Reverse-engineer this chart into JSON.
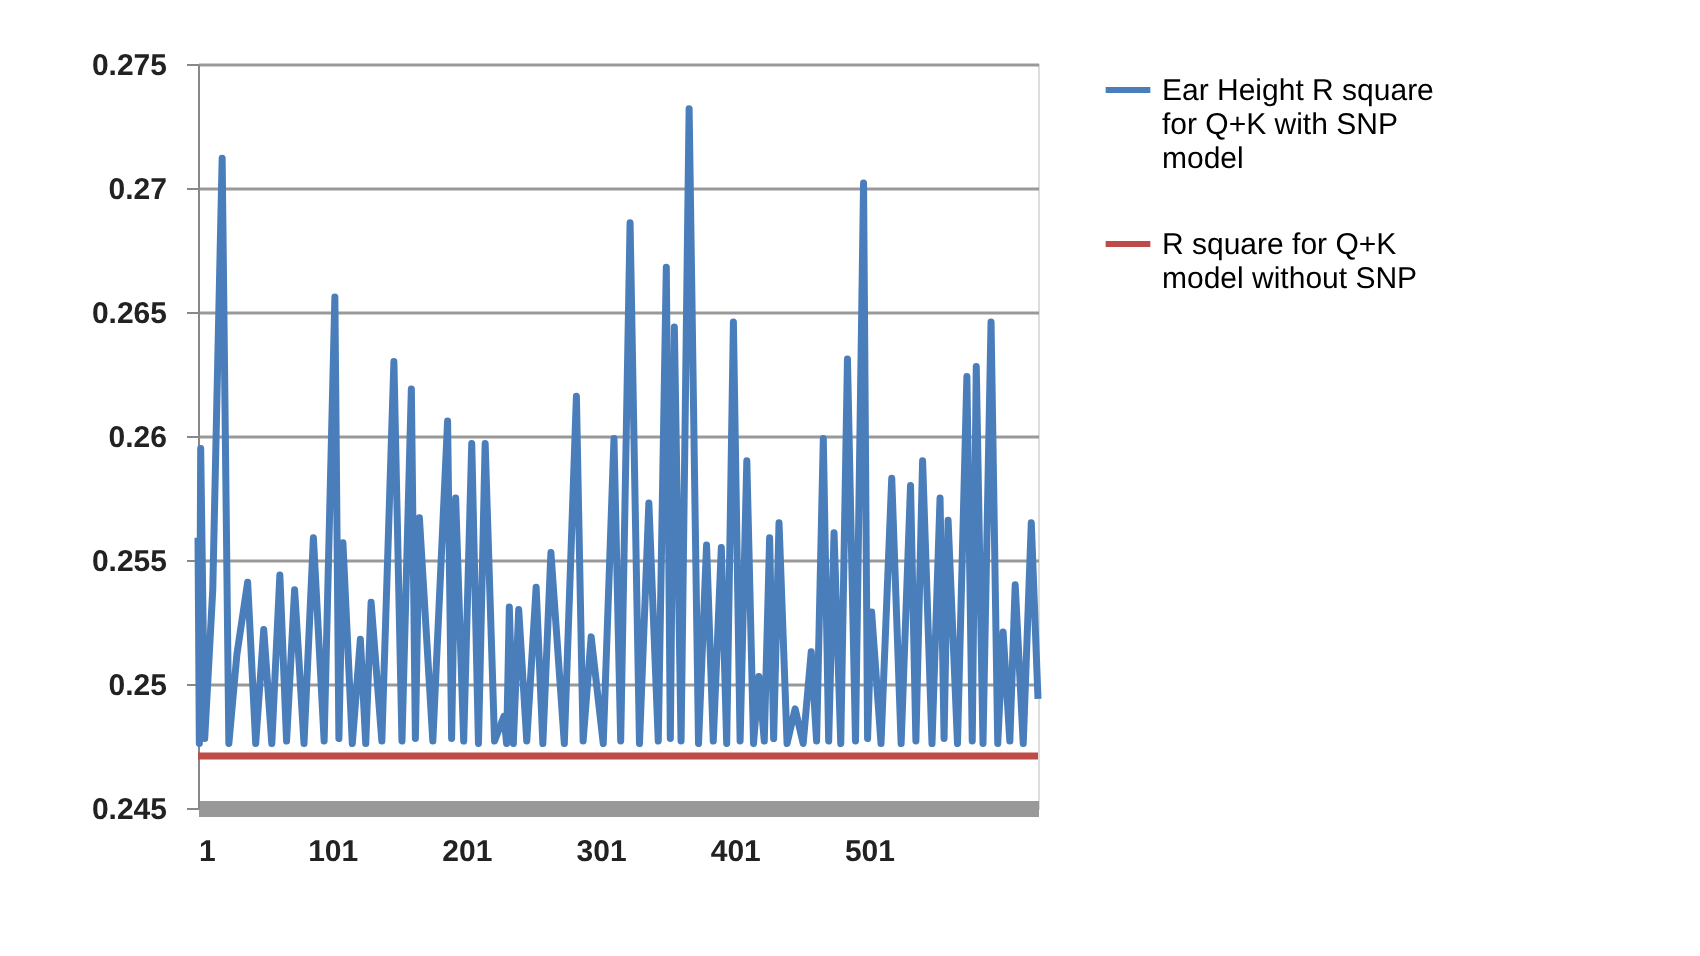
{
  "chart_data": {
    "type": "line",
    "xlim": [
      1,
      627
    ],
    "xticks": [
      1,
      101,
      201,
      301,
      401,
      501
    ],
    "ylim": [
      0.245,
      0.275
    ],
    "yticks": [
      0.245,
      0.25,
      0.255,
      0.26,
      0.265,
      0.27,
      0.275
    ],
    "grid": "y",
    "legend": "right",
    "series": [
      {
        "name": "Ear Height R square for Q+K with SNP model",
        "color": "#4a7ebb",
        "x": [
          1,
          2,
          3,
          6,
          12,
          19,
          24,
          30,
          38,
          44,
          50,
          56,
          62,
          67,
          73,
          80,
          87,
          95,
          103,
          106,
          109,
          116,
          122,
          126,
          130,
          138,
          147,
          153,
          160,
          163,
          166,
          176,
          187,
          190,
          193,
          199,
          205,
          210,
          215,
          222,
          229,
          231,
          233,
          236,
          240,
          246,
          253,
          258,
          264,
          274,
          283,
          288,
          294,
          303,
          311,
          316,
          323,
          330,
          337,
          344,
          350,
          353,
          356,
          361,
          367,
          374,
          380,
          385,
          391,
          395,
          400,
          405,
          410,
          415,
          419,
          423,
          427,
          430,
          434,
          440,
          446,
          452,
          458,
          462,
          467,
          471,
          475,
          480,
          485,
          491,
          497,
          500,
          503,
          510,
          518,
          525,
          532,
          536,
          541,
          548,
          554,
          557,
          560,
          567,
          574,
          578,
          581,
          586,
          592,
          597,
          601,
          606,
          610,
          616,
          622,
          627
        ],
        "values": [
          0.2559,
          0.2476,
          0.2595,
          0.2478,
          0.2538,
          0.2712,
          0.2476,
          0.2512,
          0.2541,
          0.2476,
          0.2522,
          0.2476,
          0.2544,
          0.2477,
          0.2538,
          0.2476,
          0.2559,
          0.2477,
          0.2656,
          0.2478,
          0.2557,
          0.2476,
          0.2518,
          0.2476,
          0.2533,
          0.2477,
          0.263,
          0.2477,
          0.2619,
          0.2478,
          0.2567,
          0.2477,
          0.2606,
          0.2478,
          0.2575,
          0.2477,
          0.2597,
          0.2476,
          0.2597,
          0.2477,
          0.2487,
          0.2476,
          0.2531,
          0.2476,
          0.253,
          0.2477,
          0.2539,
          0.2476,
          0.2553,
          0.2476,
          0.2616,
          0.2477,
          0.2519,
          0.2476,
          0.2599,
          0.2477,
          0.2686,
          0.2476,
          0.2573,
          0.2477,
          0.2668,
          0.2478,
          0.2644,
          0.2477,
          0.2732,
          0.2476,
          0.2556,
          0.2477,
          0.2555,
          0.2476,
          0.2646,
          0.2477,
          0.259,
          0.2476,
          0.2503,
          0.2477,
          0.2559,
          0.2478,
          0.2565,
          0.2476,
          0.249,
          0.2476,
          0.2513,
          0.2477,
          0.2599,
          0.2477,
          0.2561,
          0.2476,
          0.2631,
          0.2477,
          0.2702,
          0.2478,
          0.2529,
          0.2476,
          0.2583,
          0.2476,
          0.258,
          0.2477,
          0.259,
          0.2476,
          0.2575,
          0.2478,
          0.2566,
          0.2476,
          0.2624,
          0.2477,
          0.2628,
          0.2476,
          0.2646,
          0.2476,
          0.2521,
          0.2477,
          0.254,
          0.2476,
          0.2565,
          0.2494
        ]
      },
      {
        "name": "R square for Q+K model without SNP",
        "color": "#be4b48",
        "x": [
          1,
          627
        ],
        "values": [
          0.2471,
          0.2471
        ]
      }
    ]
  }
}
